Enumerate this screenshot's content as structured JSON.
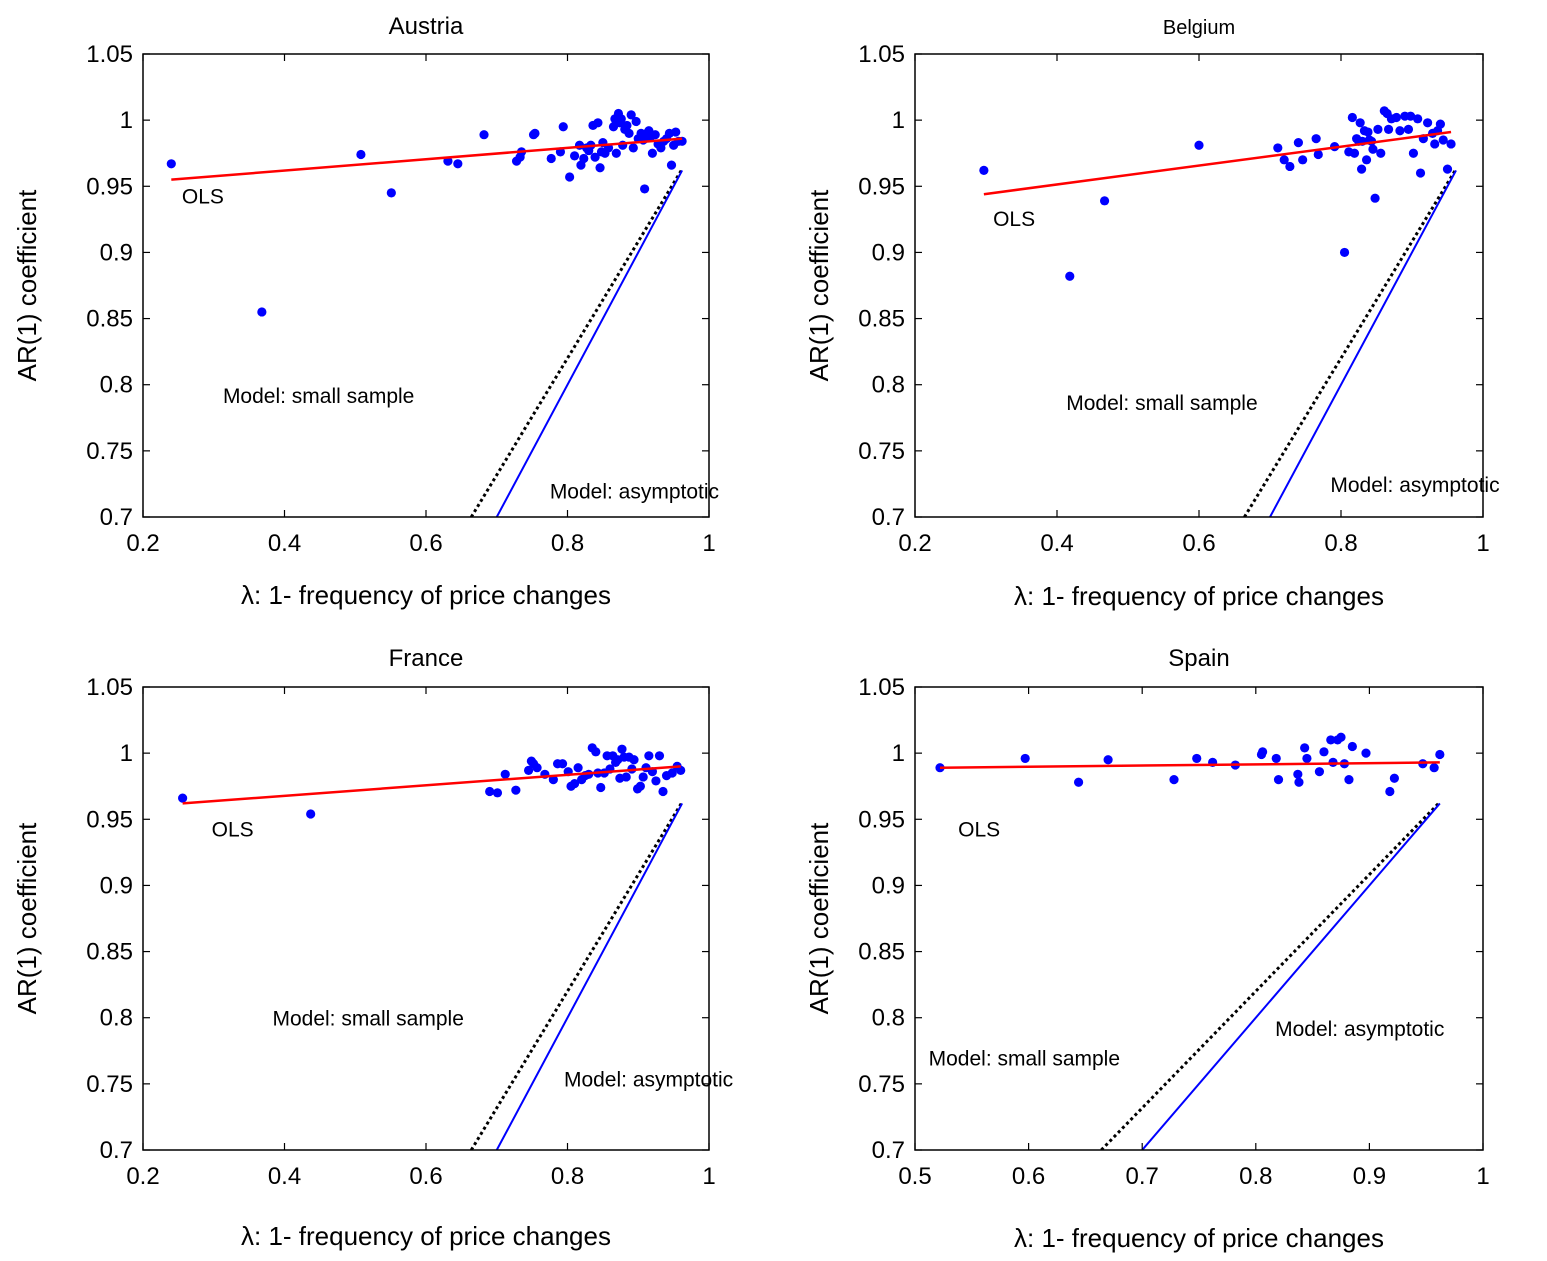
{
  "common": {
    "xlabel": "λ: 1- frequency of price changes",
    "ylabel": "AR(1) coefficient"
  },
  "colors": {
    "points": "#0000ff",
    "ols_line": "#ff0000",
    "asymptotic_line": "#0000ff",
    "small_sample_line": "#000000"
  },
  "chart_data": [
    {
      "type": "scatter",
      "title": "Austria",
      "xlabel": "λ: 1- frequency of price changes",
      "ylabel": "AR(1) coefficient",
      "xlim": [
        0.2,
        1.0
      ],
      "ylim": [
        0.7,
        1.05
      ],
      "xticks": [
        "0.2",
        "0.4",
        "0.6",
        "0.8",
        "1"
      ],
      "yticks": [
        "0.7",
        "0.75",
        "0.8",
        "0.85",
        "0.9",
        "0.95",
        "1",
        "1.05"
      ],
      "xtick_values": [
        0.2,
        0.4,
        0.6,
        0.8,
        1.0
      ],
      "ytick_values": [
        0.7,
        0.75,
        0.8,
        0.85,
        0.9,
        0.95,
        1.0,
        1.05
      ],
      "points": [
        [
          0.24,
          0.967
        ],
        [
          0.368,
          0.855
        ],
        [
          0.508,
          0.974
        ],
        [
          0.551,
          0.945
        ],
        [
          0.631,
          0.969
        ],
        [
          0.645,
          0.967
        ],
        [
          0.682,
          0.989
        ],
        [
          0.728,
          0.969
        ],
        [
          0.733,
          0.972
        ],
        [
          0.735,
          0.976
        ],
        [
          0.752,
          0.989
        ],
        [
          0.754,
          0.99
        ],
        [
          0.777,
          0.971
        ],
        [
          0.79,
          0.976
        ],
        [
          0.794,
          0.995
        ],
        [
          0.803,
          0.957
        ],
        [
          0.81,
          0.973
        ],
        [
          0.817,
          0.981
        ],
        [
          0.819,
          0.966
        ],
        [
          0.823,
          0.971
        ],
        [
          0.827,
          0.979
        ],
        [
          0.83,
          0.977
        ],
        [
          0.833,
          0.981
        ],
        [
          0.836,
          0.996
        ],
        [
          0.839,
          0.972
        ],
        [
          0.843,
          0.998
        ],
        [
          0.846,
          0.964
        ],
        [
          0.848,
          0.976
        ],
        [
          0.85,
          0.983
        ],
        [
          0.853,
          0.975
        ],
        [
          0.858,
          0.979
        ],
        [
          0.865,
          0.995
        ],
        [
          0.867,
          1.001
        ],
        [
          0.869,
          0.975
        ],
        [
          0.872,
          1.005
        ],
        [
          0.874,
          0.998
        ],
        [
          0.876,
          1.001
        ],
        [
          0.878,
          0.981
        ],
        [
          0.881,
          0.993
        ],
        [
          0.884,
          0.996
        ],
        [
          0.887,
          0.99
        ],
        [
          0.89,
          1.004
        ],
        [
          0.893,
          0.979
        ],
        [
          0.897,
          0.999
        ],
        [
          0.9,
          0.986
        ],
        [
          0.904,
          0.99
        ],
        [
          0.907,
          0.985
        ],
        [
          0.909,
          0.948
        ],
        [
          0.912,
          0.99
        ],
        [
          0.915,
          0.992
        ],
        [
          0.917,
          0.987
        ],
        [
          0.92,
          0.975
        ],
        [
          0.924,
          0.989
        ],
        [
          0.928,
          0.982
        ],
        [
          0.932,
          0.979
        ],
        [
          0.936,
          0.984
        ],
        [
          0.94,
          0.986
        ],
        [
          0.944,
          0.99
        ],
        [
          0.947,
          0.966
        ],
        [
          0.95,
          0.981
        ],
        [
          0.953,
          0.991
        ],
        [
          0.957,
          0.984
        ],
        [
          0.962,
          0.984
        ]
      ],
      "ols_line": {
        "x": [
          0.24,
          0.962
        ],
        "y": [
          0.955,
          0.986
        ]
      },
      "small_sample_line": {
        "x": [
          0.664,
          0.962
        ],
        "y": [
          0.7,
          0.963
        ]
      },
      "asymptotic_line": {
        "x": [
          0.7,
          0.962
        ],
        "y": [
          0.7,
          0.962
        ]
      },
      "annotations": [
        {
          "text": "OLS",
          "x": 0.255,
          "y": 0.937
        },
        {
          "text": "Model: small sample",
          "x": 0.313,
          "y": 0.786
        },
        {
          "text": "Model: asymptotic",
          "x": 0.775,
          "y": 0.714
        }
      ]
    },
    {
      "type": "scatter",
      "title": "Belgium",
      "xlabel": "λ: 1- frequency of price changes",
      "ylabel": "AR(1) coefficient",
      "xlim": [
        0.2,
        1.0
      ],
      "ylim": [
        0.7,
        1.05
      ],
      "xticks": [
        "0.2",
        "0.4",
        "0.6",
        "0.8",
        "1"
      ],
      "yticks": [
        "0.7",
        "0.75",
        "0.8",
        "0.85",
        "0.9",
        "0.95",
        "1",
        "1.05"
      ],
      "xtick_values": [
        0.2,
        0.4,
        0.6,
        0.8,
        1.0
      ],
      "ytick_values": [
        0.7,
        0.75,
        0.8,
        0.85,
        0.9,
        0.95,
        1.0,
        1.05
      ],
      "points": [
        [
          0.297,
          0.962
        ],
        [
          0.418,
          0.882
        ],
        [
          0.467,
          0.939
        ],
        [
          0.6,
          0.981
        ],
        [
          0.711,
          0.979
        ],
        [
          0.72,
          0.97
        ],
        [
          0.728,
          0.965
        ],
        [
          0.74,
          0.983
        ],
        [
          0.746,
          0.97
        ],
        [
          0.765,
          0.986
        ],
        [
          0.768,
          0.974
        ],
        [
          0.791,
          0.98
        ],
        [
          0.805,
          0.9
        ],
        [
          0.811,
          0.976
        ],
        [
          0.816,
          1.002
        ],
        [
          0.819,
          0.975
        ],
        [
          0.822,
          0.986
        ],
        [
          0.825,
          0.984
        ],
        [
          0.827,
          0.998
        ],
        [
          0.829,
          0.963
        ],
        [
          0.83,
          0.984
        ],
        [
          0.833,
          0.992
        ],
        [
          0.836,
          0.97
        ],
        [
          0.838,
          0.991
        ],
        [
          0.84,
          0.985
        ],
        [
          0.843,
          0.984
        ],
        [
          0.845,
          0.978
        ],
        [
          0.848,
          0.941
        ],
        [
          0.852,
          0.993
        ],
        [
          0.856,
          0.975
        ],
        [
          0.861,
          1.007
        ],
        [
          0.865,
          1.005
        ],
        [
          0.867,
          0.993
        ],
        [
          0.871,
          1.001
        ],
        [
          0.878,
          1.002
        ],
        [
          0.883,
          0.992
        ],
        [
          0.89,
          1.003
        ],
        [
          0.895,
          0.993
        ],
        [
          0.898,
          1.003
        ],
        [
          0.902,
          0.975
        ],
        [
          0.908,
          1.001
        ],
        [
          0.912,
          0.96
        ],
        [
          0.916,
          0.986
        ],
        [
          0.922,
          0.998
        ],
        [
          0.929,
          0.99
        ],
        [
          0.932,
          0.982
        ],
        [
          0.936,
          0.992
        ],
        [
          0.94,
          0.997
        ],
        [
          0.944,
          0.985
        ],
        [
          0.95,
          0.963
        ],
        [
          0.955,
          0.982
        ]
      ],
      "ols_line": {
        "x": [
          0.297,
          0.955
        ],
        "y": [
          0.944,
          0.991
        ]
      },
      "small_sample_line": {
        "x": [
          0.664,
          0.962
        ],
        "y": [
          0.7,
          0.963
        ]
      },
      "asymptotic_line": {
        "x": [
          0.7,
          0.962
        ],
        "y": [
          0.7,
          0.962
        ]
      },
      "annotations": [
        {
          "text": "OLS",
          "x": 0.31,
          "y": 0.92
        },
        {
          "text": "Model: small sample",
          "x": 0.413,
          "y": 0.781
        },
        {
          "text": "Model: asymptotic",
          "x": 0.785,
          "y": 0.719
        }
      ]
    },
    {
      "type": "scatter",
      "title": "France",
      "xlabel": "λ: 1- frequency of price changes",
      "ylabel": "AR(1) coefficient",
      "xlim": [
        0.2,
        1.0
      ],
      "ylim": [
        0.7,
        1.05
      ],
      "xticks": [
        "0.2",
        "0.4",
        "0.6",
        "0.8",
        "1"
      ],
      "yticks": [
        "0.7",
        "0.75",
        "0.8",
        "0.85",
        "0.9",
        "0.95",
        "1",
        "1.05"
      ],
      "xtick_values": [
        0.2,
        0.4,
        0.6,
        0.8,
        1.0
      ],
      "ytick_values": [
        0.7,
        0.75,
        0.8,
        0.85,
        0.9,
        0.95,
        1.0,
        1.05
      ],
      "points": [
        [
          0.256,
          0.966
        ],
        [
          0.437,
          0.954
        ],
        [
          0.69,
          0.971
        ],
        [
          0.701,
          0.97
        ],
        [
          0.712,
          0.984
        ],
        [
          0.727,
          0.972
        ],
        [
          0.745,
          0.987
        ],
        [
          0.749,
          0.994
        ],
        [
          0.752,
          0.992
        ],
        [
          0.757,
          0.989
        ],
        [
          0.768,
          0.984
        ],
        [
          0.78,
          0.98
        ],
        [
          0.786,
          0.992
        ],
        [
          0.793,
          0.992
        ],
        [
          0.801,
          0.986
        ],
        [
          0.805,
          0.975
        ],
        [
          0.81,
          0.977
        ],
        [
          0.815,
          0.989
        ],
        [
          0.82,
          0.98
        ],
        [
          0.825,
          0.983
        ],
        [
          0.83,
          0.984
        ],
        [
          0.835,
          1.004
        ],
        [
          0.84,
          1.001
        ],
        [
          0.843,
          0.985
        ],
        [
          0.847,
          0.974
        ],
        [
          0.852,
          0.985
        ],
        [
          0.856,
          0.998
        ],
        [
          0.86,
          0.988
        ],
        [
          0.864,
          0.998
        ],
        [
          0.868,
          0.993
        ],
        [
          0.871,
          0.995
        ],
        [
          0.874,
          0.981
        ],
        [
          0.877,
          1.003
        ],
        [
          0.88,
          0.997
        ],
        [
          0.883,
          0.982
        ],
        [
          0.887,
          0.997
        ],
        [
          0.891,
          0.988
        ],
        [
          0.894,
          0.995
        ],
        [
          0.899,
          0.973
        ],
        [
          0.903,
          0.975
        ],
        [
          0.907,
          0.982
        ],
        [
          0.911,
          0.989
        ],
        [
          0.915,
          0.998
        ],
        [
          0.92,
          0.986
        ],
        [
          0.925,
          0.979
        ],
        [
          0.93,
          0.998
        ],
        [
          0.935,
          0.971
        ],
        [
          0.94,
          0.983
        ],
        [
          0.948,
          0.985
        ],
        [
          0.955,
          0.99
        ],
        [
          0.96,
          0.987
        ]
      ],
      "ols_line": {
        "x": [
          0.256,
          0.96
        ],
        "y": [
          0.962,
          0.99
        ]
      },
      "small_sample_line": {
        "x": [
          0.664,
          0.962
        ],
        "y": [
          0.7,
          0.963
        ]
      },
      "asymptotic_line": {
        "x": [
          0.7,
          0.962
        ],
        "y": [
          0.7,
          0.962
        ]
      },
      "annotations": [
        {
          "text": "OLS",
          "x": 0.297,
          "y": 0.937
        },
        {
          "text": "Model: small sample",
          "x": 0.383,
          "y": 0.794
        },
        {
          "text": "Model: asymptotic",
          "x": 0.795,
          "y": 0.748
        }
      ]
    },
    {
      "type": "scatter",
      "title": "Spain",
      "xlabel": "λ: 1- frequency of price changes",
      "ylabel": "AR(1) coefficient",
      "xlim": [
        0.5,
        1.0
      ],
      "ylim": [
        0.7,
        1.05
      ],
      "xticks": [
        "0.5",
        "0.6",
        "0.7",
        "0.8",
        "0.9",
        "1"
      ],
      "yticks": [
        "0.7",
        "0.75",
        "0.8",
        "0.85",
        "0.9",
        "0.95",
        "1",
        "1.05"
      ],
      "xtick_values": [
        0.5,
        0.6,
        0.7,
        0.8,
        0.9,
        1.0
      ],
      "ytick_values": [
        0.7,
        0.75,
        0.8,
        0.85,
        0.9,
        0.95,
        1.0,
        1.05
      ],
      "points": [
        [
          0.522,
          0.989
        ],
        [
          0.597,
          0.996
        ],
        [
          0.644,
          0.978
        ],
        [
          0.67,
          0.995
        ],
        [
          0.728,
          0.98
        ],
        [
          0.748,
          0.996
        ],
        [
          0.762,
          0.993
        ],
        [
          0.782,
          0.991
        ],
        [
          0.805,
          0.999
        ],
        [
          0.806,
          1.001
        ],
        [
          0.818,
          0.996
        ],
        [
          0.82,
          0.98
        ],
        [
          0.837,
          0.984
        ],
        [
          0.838,
          0.978
        ],
        [
          0.843,
          1.004
        ],
        [
          0.845,
          0.996
        ],
        [
          0.856,
          0.986
        ],
        [
          0.86,
          1.001
        ],
        [
          0.866,
          1.01
        ],
        [
          0.868,
          0.993
        ],
        [
          0.872,
          1.01
        ],
        [
          0.875,
          1.012
        ],
        [
          0.878,
          0.992
        ],
        [
          0.882,
          0.98
        ],
        [
          0.885,
          1.005
        ],
        [
          0.897,
          1.0
        ],
        [
          0.918,
          0.971
        ],
        [
          0.922,
          0.981
        ],
        [
          0.947,
          0.992
        ],
        [
          0.957,
          0.989
        ],
        [
          0.962,
          0.999
        ]
      ],
      "ols_line": {
        "x": [
          0.522,
          0.962
        ],
        "y": [
          0.989,
          0.993
        ]
      },
      "small_sample_line": {
        "x": [
          0.664,
          0.962
        ],
        "y": [
          0.7,
          0.963
        ]
      },
      "asymptotic_line": {
        "x": [
          0.7,
          0.962
        ],
        "y": [
          0.7,
          0.962
        ]
      },
      "annotations": [
        {
          "text": "OLS",
          "x": 0.538,
          "y": 0.937
        },
        {
          "text": "Model: small sample",
          "x": 0.512,
          "y": 0.764
        },
        {
          "text": "Model: asymptotic",
          "x": 0.817,
          "y": 0.786
        }
      ]
    }
  ]
}
